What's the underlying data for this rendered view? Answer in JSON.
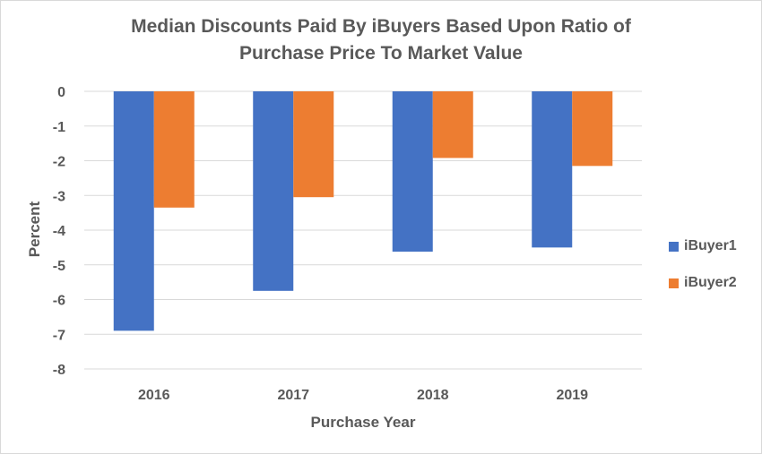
{
  "chart_data": {
    "type": "bar",
    "title_line1": "Median Discounts Paid By iBuyers Based Upon Ratio of",
    "title_line2": "Purchase Price To Market Value",
    "xlabel": "Purchase Year",
    "ylabel": "Percent",
    "categories": [
      "2016",
      "2017",
      "2018",
      "2019"
    ],
    "ylim": [
      -8,
      0
    ],
    "yticks": [
      0,
      -1,
      -2,
      -3,
      -4,
      -5,
      -6,
      -7,
      -8
    ],
    "grid": true,
    "legend_position": "right",
    "series": [
      {
        "name": "iBuyer1",
        "color": "#4472C4",
        "values": [
          -6.9,
          -5.75,
          -4.62,
          -4.5
        ]
      },
      {
        "name": "iBuyer2",
        "color": "#ED7D31",
        "values": [
          -3.35,
          -3.05,
          -1.92,
          -2.15
        ]
      }
    ]
  }
}
